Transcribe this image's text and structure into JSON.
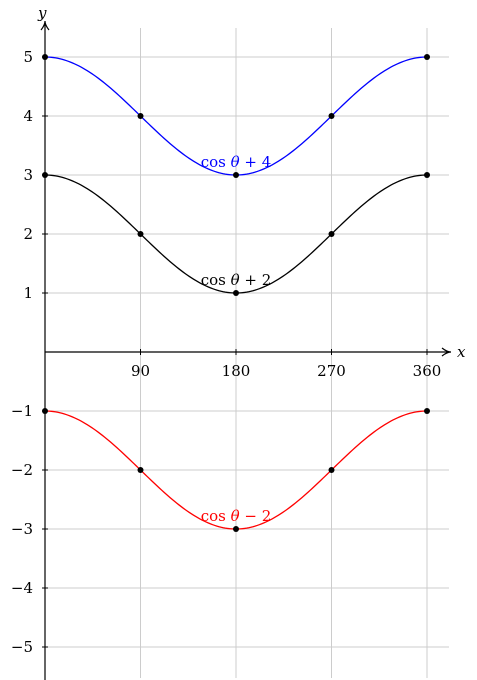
{
  "chart_data": {
    "type": "line",
    "xlabel": "x",
    "ylabel": "y",
    "xlim": [
      0,
      370
    ],
    "ylim": [
      -5.5,
      5.5
    ],
    "grid": true,
    "x_ticks": [
      90,
      180,
      270,
      360
    ],
    "y_ticks": [
      -5,
      -4,
      -3,
      -2,
      -1,
      1,
      2,
      3,
      4,
      5
    ],
    "x_tick_labels": [
      "90",
      "180",
      "270",
      "360"
    ],
    "y_tick_labels": [
      "−5",
      "−4",
      "−3",
      "−2",
      "−1",
      "1",
      "2",
      "3",
      "4",
      "5"
    ],
    "series": [
      {
        "name": "cos θ + 4",
        "label_main": "cos",
        "label_var": "θ",
        "label_rest": " + 4",
        "color": "#0000ff",
        "points": [
          [
            0,
            5
          ],
          [
            90,
            4
          ],
          [
            180,
            3
          ],
          [
            270,
            4
          ],
          [
            360,
            5
          ]
        ]
      },
      {
        "name": "cos θ + 2",
        "label_main": "cos",
        "label_var": "θ",
        "label_rest": " + 2",
        "color": "#000000",
        "points": [
          [
            0,
            3
          ],
          [
            90,
            2
          ],
          [
            180,
            1
          ],
          [
            270,
            2
          ],
          [
            360,
            3
          ]
        ]
      },
      {
        "name": "cos θ − 2",
        "label_main": "cos",
        "label_var": "θ",
        "label_rest": " − 2",
        "color": "#ff0000",
        "points": [
          [
            0,
            -1
          ],
          [
            90,
            -2
          ],
          [
            180,
            -3
          ],
          [
            270,
            -2
          ],
          [
            360,
            -1
          ]
        ]
      }
    ]
  }
}
